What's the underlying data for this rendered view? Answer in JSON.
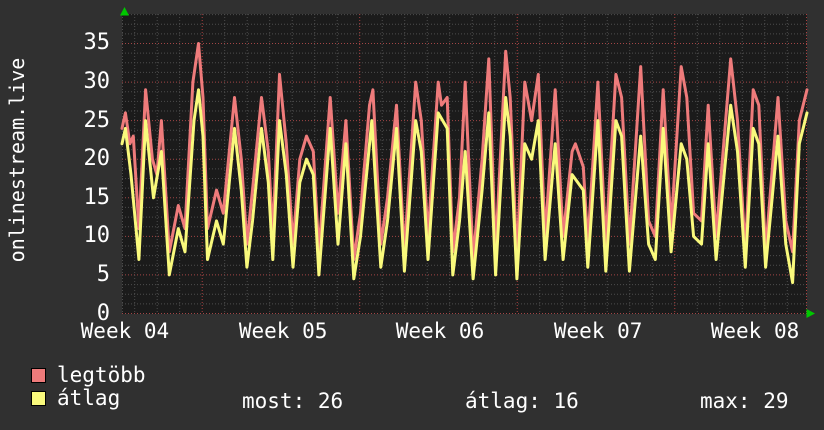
{
  "title": "onlinestream.live",
  "colors": {
    "background": "#303030",
    "plot_background": "#1b1b1b",
    "grid_minor": "#4d4d4d",
    "grid_major": "#a24646",
    "grid_week": "#ad4040",
    "text": "#ffffff",
    "arrow": "#00c800",
    "series_max": "#ee7b7b",
    "series_avg": "#f9f97c"
  },
  "legend": {
    "items": [
      {
        "label": "legtöbb",
        "color": "#ee7b7b"
      },
      {
        "label": "átlag",
        "color": "#f9f97c"
      }
    ]
  },
  "stats": [
    {
      "label": "most",
      "value": 26,
      "text": "most: 26"
    },
    {
      "label": "átlag",
      "value": 16,
      "text": "átlag: 16"
    },
    {
      "label": "max",
      "value": 29,
      "text": "max: 29"
    }
  ],
  "chart_data": {
    "type": "line",
    "title": "onlinestream.live",
    "xlabel": "",
    "ylabel": "",
    "x_unit": "days",
    "xlim_days": [
      0,
      30.44
    ],
    "ylim": [
      0,
      38.8
    ],
    "y_ticks": [
      0,
      5,
      10,
      15,
      20,
      25,
      30,
      35
    ],
    "minor_y_step": 1.25,
    "x_tick_labels": [
      "Week 04",
      "Week 05",
      "Week 06",
      "Week 07",
      "Week 08"
    ],
    "x_tick_label_centers_day": [
      0.13,
      7.16,
      14.13,
      21.16,
      28.13
    ],
    "day_grid_first_day": 0.564,
    "day_grid_step": 1,
    "week_grid_days": [
      3.564,
      10.564,
      17.564,
      24.564
    ],
    "grid": true,
    "legend_position": "bottom-left",
    "series": [
      {
        "name": "legtöbb",
        "color": "#ee7b7b",
        "points": [
          [
            0,
            24
          ],
          [
            0.15,
            26
          ],
          [
            0.35,
            22
          ],
          [
            0.5,
            23
          ],
          [
            0.75,
            11
          ],
          [
            1.05,
            29
          ],
          [
            1.35,
            20
          ],
          [
            1.55,
            18
          ],
          [
            1.75,
            25
          ],
          [
            2.1,
            8
          ],
          [
            2.5,
            14
          ],
          [
            2.8,
            11
          ],
          [
            3.15,
            30
          ],
          [
            3.4,
            35
          ],
          [
            3.6,
            28
          ],
          [
            3.8,
            11
          ],
          [
            4.2,
            16
          ],
          [
            4.5,
            13
          ],
          [
            5,
            28
          ],
          [
            5.3,
            20
          ],
          [
            5.55,
            9
          ],
          [
            5.8,
            16
          ],
          [
            6.2,
            28
          ],
          [
            6.5,
            21
          ],
          [
            6.7,
            10
          ],
          [
            7,
            31
          ],
          [
            7.3,
            22
          ],
          [
            7.6,
            9
          ],
          [
            7.9,
            20
          ],
          [
            8.2,
            23
          ],
          [
            8.5,
            21
          ],
          [
            8.75,
            8
          ],
          [
            9.25,
            28
          ],
          [
            9.6,
            13
          ],
          [
            9.95,
            25
          ],
          [
            10.3,
            7
          ],
          [
            10.6,
            13
          ],
          [
            11,
            27
          ],
          [
            11.15,
            29
          ],
          [
            11.5,
            9
          ],
          [
            11.8,
            15
          ],
          [
            12.2,
            27
          ],
          [
            12.55,
            8
          ],
          [
            13.05,
            30
          ],
          [
            13.3,
            25
          ],
          [
            13.6,
            10
          ],
          [
            14.05,
            30
          ],
          [
            14.2,
            27
          ],
          [
            14.45,
            28
          ],
          [
            14.7,
            8
          ],
          [
            15,
            15
          ],
          [
            15.25,
            30
          ],
          [
            15.6,
            7
          ],
          [
            16,
            20
          ],
          [
            16.3,
            33
          ],
          [
            16.6,
            8
          ],
          [
            17.05,
            34
          ],
          [
            17.25,
            28
          ],
          [
            17.55,
            7
          ],
          [
            17.9,
            30
          ],
          [
            18.2,
            25
          ],
          [
            18.5,
            31
          ],
          [
            18.8,
            10
          ],
          [
            19.25,
            29
          ],
          [
            19.6,
            10
          ],
          [
            20,
            21
          ],
          [
            20.15,
            22
          ],
          [
            20.5,
            19
          ],
          [
            20.7,
            9
          ],
          [
            21.15,
            30
          ],
          [
            21.5,
            9
          ],
          [
            21.95,
            31
          ],
          [
            22.2,
            28
          ],
          [
            22.55,
            9
          ],
          [
            23.05,
            32
          ],
          [
            23.4,
            12
          ],
          [
            23.7,
            10
          ],
          [
            24.05,
            29
          ],
          [
            24.4,
            11
          ],
          [
            24.85,
            32
          ],
          [
            25.1,
            28
          ],
          [
            25.4,
            13
          ],
          [
            25.75,
            12
          ],
          [
            26.05,
            27
          ],
          [
            26.4,
            10
          ],
          [
            27.05,
            33
          ],
          [
            27.35,
            25
          ],
          [
            27.7,
            8
          ],
          [
            28.05,
            29
          ],
          [
            28.3,
            27
          ],
          [
            28.6,
            8
          ],
          [
            29.15,
            28
          ],
          [
            29.5,
            12
          ],
          [
            29.8,
            8
          ],
          [
            30.1,
            25
          ],
          [
            30.44,
            29
          ]
        ]
      },
      {
        "name": "átlag",
        "color": "#f9f97c",
        "points": [
          [
            0,
            22
          ],
          [
            0.15,
            24
          ],
          [
            0.4,
            18
          ],
          [
            0.75,
            7
          ],
          [
            1.05,
            25
          ],
          [
            1.4,
            15
          ],
          [
            1.75,
            21
          ],
          [
            2.1,
            5
          ],
          [
            2.5,
            11
          ],
          [
            2.8,
            8
          ],
          [
            3.2,
            25
          ],
          [
            3.4,
            29
          ],
          [
            3.6,
            23
          ],
          [
            3.8,
            7
          ],
          [
            4.2,
            12
          ],
          [
            4.5,
            9
          ],
          [
            5,
            24
          ],
          [
            5.3,
            16
          ],
          [
            5.55,
            6
          ],
          [
            5.8,
            12
          ],
          [
            6.2,
            24
          ],
          [
            6.5,
            17
          ],
          [
            6.7,
            7
          ],
          [
            7,
            25
          ],
          [
            7.3,
            18
          ],
          [
            7.6,
            6
          ],
          [
            7.9,
            17
          ],
          [
            8.2,
            20
          ],
          [
            8.5,
            18
          ],
          [
            8.75,
            5
          ],
          [
            9.25,
            24
          ],
          [
            9.6,
            9
          ],
          [
            9.95,
            22
          ],
          [
            10.3,
            4.5
          ],
          [
            10.6,
            10
          ],
          [
            11.1,
            25
          ],
          [
            11.5,
            6
          ],
          [
            11.8,
            12
          ],
          [
            12.2,
            24
          ],
          [
            12.55,
            5.5
          ],
          [
            13.05,
            25
          ],
          [
            13.3,
            21
          ],
          [
            13.6,
            7
          ],
          [
            14.05,
            26
          ],
          [
            14.45,
            24
          ],
          [
            14.7,
            5
          ],
          [
            15,
            12
          ],
          [
            15.25,
            21
          ],
          [
            15.6,
            4.5
          ],
          [
            16,
            16
          ],
          [
            16.3,
            26
          ],
          [
            16.6,
            5
          ],
          [
            17.05,
            28
          ],
          [
            17.25,
            23
          ],
          [
            17.55,
            4.5
          ],
          [
            17.9,
            22
          ],
          [
            18.2,
            20
          ],
          [
            18.5,
            25
          ],
          [
            18.8,
            7
          ],
          [
            19.25,
            22
          ],
          [
            19.6,
            7
          ],
          [
            20,
            18
          ],
          [
            20.5,
            16
          ],
          [
            20.7,
            6
          ],
          [
            21.15,
            25
          ],
          [
            21.5,
            5.5
          ],
          [
            21.95,
            25
          ],
          [
            22.2,
            23
          ],
          [
            22.55,
            5.5
          ],
          [
            23.05,
            23
          ],
          [
            23.4,
            9
          ],
          [
            23.7,
            7
          ],
          [
            24.05,
            24
          ],
          [
            24.4,
            8
          ],
          [
            24.85,
            22
          ],
          [
            25.1,
            20
          ],
          [
            25.4,
            10
          ],
          [
            25.75,
            9
          ],
          [
            26.05,
            22
          ],
          [
            26.4,
            7
          ],
          [
            27.05,
            27
          ],
          [
            27.35,
            21
          ],
          [
            27.7,
            6
          ],
          [
            28.05,
            24
          ],
          [
            28.3,
            22
          ],
          [
            28.6,
            6
          ],
          [
            29.15,
            23
          ],
          [
            29.5,
            9
          ],
          [
            29.8,
            4
          ],
          [
            30.1,
            22
          ],
          [
            30.44,
            26
          ]
        ]
      }
    ]
  }
}
